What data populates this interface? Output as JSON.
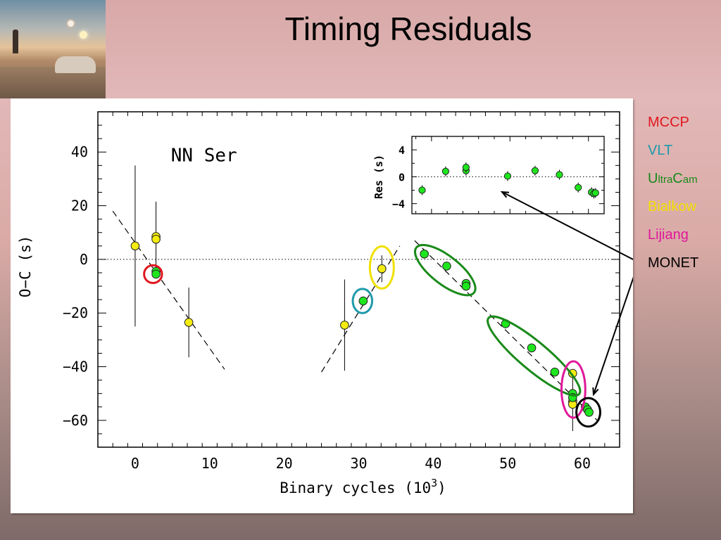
{
  "slide": {
    "title": "Timing Residuals"
  },
  "legend": {
    "items": [
      {
        "name": "MCCP",
        "color": "#e0181e"
      },
      {
        "name": "VLT",
        "color": "#1e9aaa"
      },
      {
        "first": "U",
        "rest": "ltra",
        "second": "C",
        "rest2": "am",
        "color": "#1a8a1a"
      },
      {
        "name": "Bialkow",
        "color": "#f0e000"
      },
      {
        "name": "Lijiang",
        "color": "#e0189a"
      },
      {
        "name": "MONET",
        "color": "#000000"
      }
    ]
  },
  "chart_data": [
    {
      "type": "scatter",
      "annotation": "NN Ser",
      "xlabel": "Binary cycles (10",
      "xlabel_sup": "3",
      "xlabel_end": ")",
      "ylabel": "O−C (s)",
      "xlim": [
        -5,
        65
      ],
      "ylim": [
        -70,
        55
      ],
      "x_ticks": [
        0,
        10,
        20,
        30,
        40,
        50,
        60
      ],
      "x_tick_labels": [
        "0",
        "10",
        "20",
        "30",
        "40",
        "50",
        "60"
      ],
      "y_ticks": [
        40,
        20,
        0,
        -20,
        -40,
        -60
      ],
      "y_tick_labels": [
        "40",
        "20",
        "0",
        "−20",
        "−40",
        "−60"
      ],
      "zero_line": "dotted",
      "fit_lines": [
        {
          "x": [
            -3,
            12
          ],
          "y": [
            18,
            -41
          ]
        },
        {
          "x": [
            25,
            35.5
          ],
          "y": [
            -42,
            5
          ]
        },
        {
          "x": [
            37.5,
            62
          ],
          "y": [
            7,
            -60
          ]
        }
      ],
      "series": [
        {
          "color": "#f4ec10",
          "points": [
            {
              "x": 0.0,
              "y": 5.0,
              "err": 30
            },
            {
              "x": 2.8,
              "y": 8.5,
              "err": 13
            },
            {
              "x": 2.8,
              "y": 7.5,
              "err": 0
            },
            {
              "x": 7.2,
              "y": -23.5,
              "err": 13
            },
            {
              "x": 28.1,
              "y": -24.5,
              "err": 17
            },
            {
              "x": 33.1,
              "y": -3.5,
              "err": 5
            },
            {
              "x": 58.7,
              "y": -42.5,
              "err": 0
            },
            {
              "x": 58.7,
              "y": -53.0,
              "err": 11
            },
            {
              "x": 58.7,
              "y": -54.0,
              "err": 0
            }
          ]
        },
        {
          "color": "#1ee61e",
          "points": [
            {
              "x": 2.8,
              "y": -4.5
            },
            {
              "x": 2.8,
              "y": -5.5
            },
            {
              "x": 30.6,
              "y": -15.5
            },
            {
              "x": 38.8,
              "y": 2.0
            },
            {
              "x": 41.8,
              "y": -2.5
            },
            {
              "x": 44.4,
              "y": -9.0
            },
            {
              "x": 44.4,
              "y": -10.0
            },
            {
              "x": 49.7,
              "y": -24.0
            },
            {
              "x": 53.2,
              "y": -33.0
            },
            {
              "x": 56.3,
              "y": -42.0
            },
            {
              "x": 58.7,
              "y": -50.0
            },
            {
              "x": 58.7,
              "y": -51.5
            },
            {
              "x": 60.4,
              "y": -55.0
            },
            {
              "x": 60.7,
              "y": -56.0
            },
            {
              "x": 60.9,
              "y": -57.0
            }
          ]
        }
      ],
      "ellipses": [
        {
          "color": "#e0181e",
          "cx": 2.4,
          "cy": -5.5,
          "rx": 1.2,
          "ry": 3.3,
          "angle": 0
        },
        {
          "color": "#1e9aaa",
          "cx": 30.5,
          "cy": -15.5,
          "rx": 1.3,
          "ry": 4.5,
          "angle": 0
        },
        {
          "color": "#f0e000",
          "cx": 33.1,
          "cy": -3.0,
          "rx": 1.7,
          "ry": 8.0,
          "angle": 0
        },
        {
          "color": "#1a8a1a",
          "cx": 41.6,
          "cy": -4.0,
          "rx": 4.3,
          "ry": 10.0,
          "angle": 0
        },
        {
          "color": "#1a8a1a",
          "cx": 53.5,
          "cy": -36.0,
          "rx": 5.6,
          "ry": 19.5,
          "angle": 0
        },
        {
          "color": "#e0189a",
          "cx": 58.8,
          "cy": -48.5,
          "rx": 1.6,
          "ry": 10.5,
          "angle": 0
        },
        {
          "color": "#000000",
          "cx": 60.8,
          "cy": -57.0,
          "rx": 1.6,
          "ry": 5.3,
          "angle": 0
        }
      ]
    },
    {
      "type": "scatter",
      "ylabel": "Res (s)",
      "xlim": [
        37.5,
        62
      ],
      "ylim": [
        -5.5,
        6
      ],
      "y_ticks": [
        4,
        0,
        -4
      ],
      "y_tick_labels": [
        "4",
        "0",
        "−4"
      ],
      "zero_line": "dotted",
      "series": [
        {
          "color": "#1ee61e",
          "points": [
            {
              "x": 38.8,
              "y": -2.0
            },
            {
              "x": 41.8,
              "y": 0.8
            },
            {
              "x": 44.4,
              "y": 0.9
            },
            {
              "x": 44.4,
              "y": 1.4
            },
            {
              "x": 49.7,
              "y": 0.1
            },
            {
              "x": 53.2,
              "y": 0.9
            },
            {
              "x": 56.3,
              "y": 0.3
            },
            {
              "x": 58.7,
              "y": -1.6
            },
            {
              "x": 60.4,
              "y": -2.3
            },
            {
              "x": 60.7,
              "y": -2.5
            },
            {
              "x": 60.9,
              "y": -2.4
            }
          ]
        }
      ]
    }
  ]
}
